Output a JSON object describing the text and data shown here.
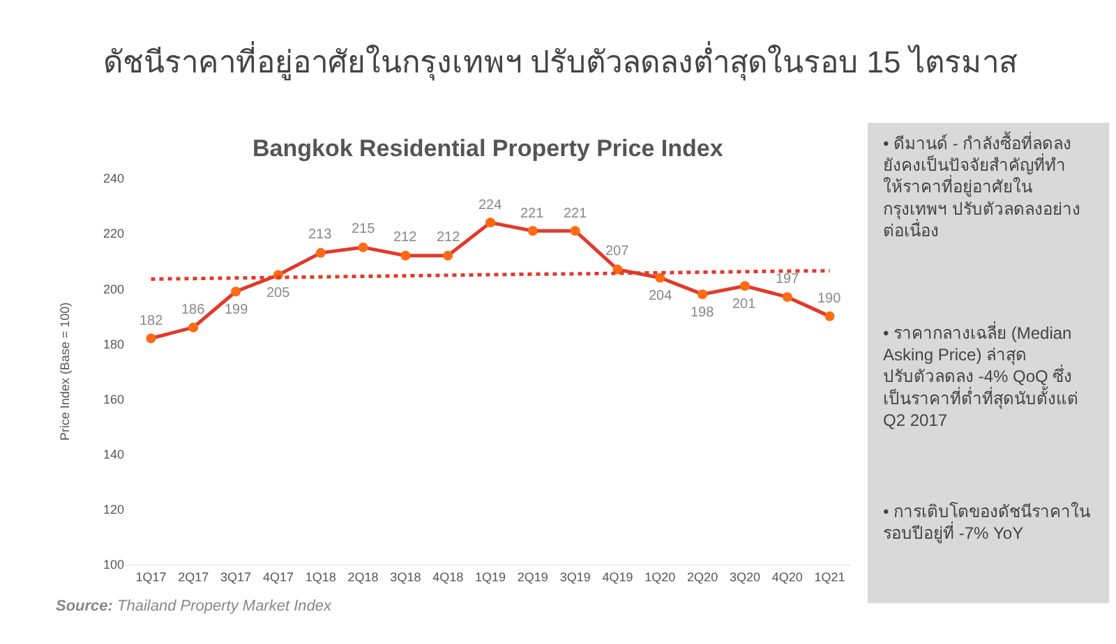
{
  "chart_data": {
    "type": "line",
    "title": "ดัชนีราคาที่อยู่อาศัยในกรุงเทพฯ ปรับตัวลดลงต่ำสุดในรอบ 15 ไตรมาส",
    "subtitle": "Bangkok Residential Property Price Index",
    "ylabel": "Price Index (Base = 100)",
    "categories": [
      "1Q17",
      "2Q17",
      "3Q17",
      "4Q17",
      "1Q18",
      "2Q18",
      "3Q18",
      "4Q18",
      "1Q19",
      "2Q19",
      "3Q19",
      "4Q19",
      "1Q20",
      "2Q20",
      "3Q20",
      "4Q20",
      "1Q21"
    ],
    "series": [
      {
        "color": "#e3392a",
        "marker": "circle",
        "line_style": "solid",
        "data_labels": true,
        "values": [
          182,
          186,
          199,
          205,
          213,
          215,
          212,
          212,
          224,
          221,
          221,
          207,
          204,
          198,
          201,
          197,
          190
        ]
      },
      {
        "color": "#e3392a",
        "marker": "none",
        "line_style": "dotted",
        "values": [
          203.5,
          203.7,
          203.9,
          204.1,
          204.3,
          204.5,
          204.7,
          204.9,
          205.1,
          205.3,
          205.4,
          205.6,
          205.8,
          206.0,
          206.2,
          206.4,
          206.5
        ]
      }
    ],
    "ylim": [
      100,
      240
    ],
    "yticks": [
      100,
      120,
      140,
      160,
      180,
      200,
      220,
      240
    ],
    "annotations": [
      "• ดีมานด์ - กำลังซื้อที่ลดลง\nยังคงเป็นปัจจัยสำคัญที่ทำ\nให้ราคาที่อยู่อาศัยใน\nกรุงเทพฯ ปรับตัวลดลงอย่าง\nต่อเนื่อง",
      "• ราคากลางเฉลี่ย (Median\nAsking Price) ล่าสุด\nปรับตัวลดลง -4% QoQ ซึ่ง\nเป็นราคาที่ต่ำที่สุดนับตั้งแต่\nQ2 2017",
      "• การเติบโตของดัชนีราคาใน\nรอบปีอยู่ที่ -7% YoY",
      "Source: Thailand Property Market Index"
    ]
  }
}
